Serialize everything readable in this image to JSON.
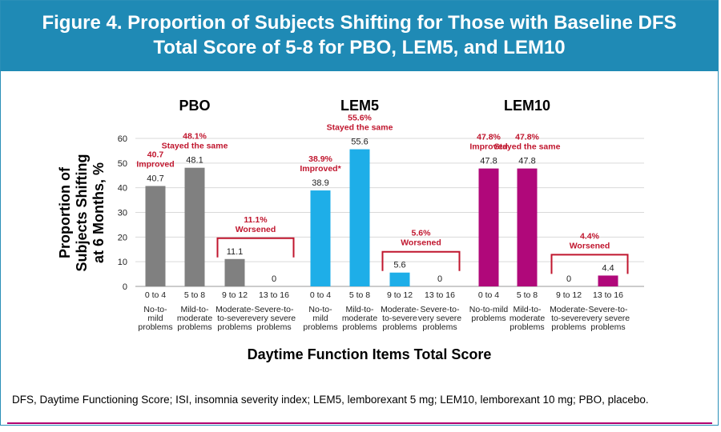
{
  "header": {
    "line1": "Figure 4. Proportion of Subjects Shifting for Those with Baseline DFS",
    "line2": "Total Score of 5-8 for PBO, LEM5, and LEM10"
  },
  "footnote": "DFS, Daytime Functioning Score; ISI, insomnia severity index; LEM5, lemborexant 5 mg; LEM10, lemborexant 10 mg; PBO, placebo.",
  "colors": {
    "header": "#1f8ab5",
    "pbo": "#808080",
    "lem5": "#1eaee8",
    "lem10": "#b0087a",
    "annotation": "#c0162e"
  },
  "chart_data": {
    "type": "bar",
    "xlabel": "Daytime Function Items Total Score",
    "ylabel_lines": [
      "Proportion of",
      "Subjects Shifting",
      "at 6 Months, %"
    ],
    "ylim": [
      0,
      60
    ],
    "yticks": [
      "0",
      "10",
      "20",
      "30",
      "40",
      "50",
      "60"
    ],
    "grid": true,
    "groups": [
      {
        "name": "PBO",
        "color_key": "pbo",
        "categories": [
          {
            "range": "0 to 4",
            "desc": [
              "No-to-",
              "mild",
              "problems"
            ]
          },
          {
            "range": "5 to 8",
            "desc": [
              "Mild-to-",
              "moderate",
              "problems"
            ]
          },
          {
            "range": "9 to 12",
            "desc": [
              "Moderate-",
              "to-severe",
              "problems"
            ]
          },
          {
            "range": "13 to 16",
            "desc": [
              "Severe-to-",
              "very severe",
              "problems"
            ]
          }
        ],
        "values": [
          40.7,
          48.1,
          11.1,
          0
        ],
        "value_labels": [
          "40.7",
          "48.1",
          "11.1",
          "0"
        ],
        "annotations": [
          {
            "bar": 0,
            "lines": [
              "40.7",
              "Improved"
            ]
          },
          {
            "bar": 1,
            "lines": [
              "48.1%",
              "Stayed the same"
            ]
          },
          {
            "bracket": [
              2,
              3
            ],
            "lines": [
              "11.1%",
              "Worsened"
            ]
          }
        ]
      },
      {
        "name": "LEM5",
        "color_key": "lem5",
        "categories": [
          {
            "range": "0 to 4",
            "desc": [
              "No-to-",
              "mild",
              "problems"
            ]
          },
          {
            "range": "5 to 8",
            "desc": [
              "Mild-to-",
              "moderate",
              "problems"
            ]
          },
          {
            "range": "9 to 12",
            "desc": [
              "Moderate-",
              "to-severe",
              "problems"
            ]
          },
          {
            "range": "13 to 16",
            "desc": [
              "Severe-to-",
              "very severe",
              "problems"
            ]
          }
        ],
        "values": [
          38.9,
          55.6,
          5.6,
          0
        ],
        "value_labels": [
          "38.9",
          "55.6",
          "5.6",
          "0"
        ],
        "annotations": [
          {
            "bar": 0,
            "lines": [
              "38.9%",
              "Improved*"
            ]
          },
          {
            "bar": 1,
            "lines": [
              "55.6%",
              "Stayed the same"
            ]
          },
          {
            "bracket": [
              2,
              3
            ],
            "lines": [
              "5.6%",
              "Worsened"
            ]
          }
        ]
      },
      {
        "name": "LEM10",
        "color_key": "lem10",
        "categories": [
          {
            "range": "0 to 4",
            "desc": [
              "No-to-mild",
              "problems"
            ]
          },
          {
            "range": "5 to 8",
            "desc": [
              "Mild-to-",
              "moderate",
              "problems"
            ]
          },
          {
            "range": "9 to 12",
            "desc": [
              "Moderate-",
              "to-severe",
              "problems"
            ]
          },
          {
            "range": "13 to 16",
            "desc": [
              "Severe-to-",
              "very severe",
              "problems"
            ]
          }
        ],
        "values": [
          47.8,
          47.8,
          0,
          4.4
        ],
        "value_labels": [
          "47.8",
          "47.8",
          "0",
          "4.4"
        ],
        "annotations": [
          {
            "bar": 0,
            "lines": [
              "47.8%",
              "Improved"
            ]
          },
          {
            "bar": 1,
            "lines": [
              "47.8%",
              "Stayed the same"
            ]
          },
          {
            "bracket": [
              2,
              3
            ],
            "lines": [
              "4.4%",
              "Worsened"
            ]
          }
        ]
      }
    ]
  }
}
